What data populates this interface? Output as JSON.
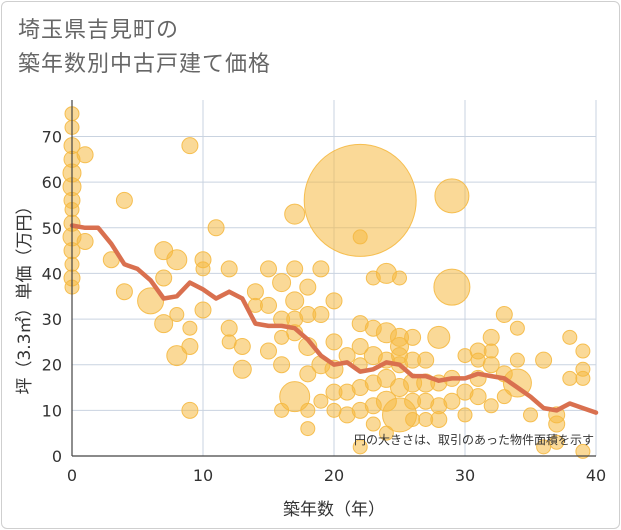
{
  "chart_data": {
    "type": "scatter",
    "title_lines": [
      "埼玉県吉見町の",
      "築年数別中古戸建て価格"
    ],
    "xlabel": "築年数（年）",
    "ylabel": "坪（3.3㎡）単価（万円）",
    "xlim": [
      0,
      40
    ],
    "ylim": [
      0,
      78
    ],
    "xticks": [
      0,
      10,
      20,
      30,
      40
    ],
    "yticks": [
      0,
      10,
      20,
      30,
      40,
      50,
      60,
      70
    ],
    "grid": true,
    "note": "円の大きさは、取引のあった物件面積を示す",
    "colors": {
      "bubble": "#f5b942",
      "line": "#d9704f",
      "grid": "#c9d3e0"
    },
    "series": [
      {
        "type": "bubble",
        "points": [
          {
            "x": 0,
            "y": 75,
            "r": 7
          },
          {
            "x": 0,
            "y": 72,
            "r": 7
          },
          {
            "x": 0,
            "y": 68,
            "r": 8
          },
          {
            "x": 0,
            "y": 65,
            "r": 8
          },
          {
            "x": 0,
            "y": 62,
            "r": 9
          },
          {
            "x": 0,
            "y": 59,
            "r": 9
          },
          {
            "x": 0,
            "y": 56,
            "r": 8
          },
          {
            "x": 0,
            "y": 54,
            "r": 7
          },
          {
            "x": 0,
            "y": 51,
            "r": 8
          },
          {
            "x": 0,
            "y": 48,
            "r": 9
          },
          {
            "x": 0,
            "y": 45,
            "r": 8
          },
          {
            "x": 0,
            "y": 42,
            "r": 7
          },
          {
            "x": 0,
            "y": 39,
            "r": 8
          },
          {
            "x": 0,
            "y": 37,
            "r": 7
          },
          {
            "x": 1,
            "y": 66,
            "r": 8
          },
          {
            "x": 1,
            "y": 47,
            "r": 8
          },
          {
            "x": 3,
            "y": 43,
            "r": 8
          },
          {
            "x": 4,
            "y": 56,
            "r": 8
          },
          {
            "x": 4,
            "y": 36,
            "r": 8
          },
          {
            "x": 6,
            "y": 34,
            "r": 13
          },
          {
            "x": 7,
            "y": 45,
            "r": 9
          },
          {
            "x": 7,
            "y": 39,
            "r": 8
          },
          {
            "x": 7,
            "y": 29,
            "r": 9
          },
          {
            "x": 8,
            "y": 43,
            "r": 10
          },
          {
            "x": 8,
            "y": 31,
            "r": 7
          },
          {
            "x": 8,
            "y": 22,
            "r": 10
          },
          {
            "x": 9,
            "y": 68,
            "r": 8
          },
          {
            "x": 9,
            "y": 28,
            "r": 7
          },
          {
            "x": 9,
            "y": 24,
            "r": 8
          },
          {
            "x": 9,
            "y": 10,
            "r": 8
          },
          {
            "x": 10,
            "y": 43,
            "r": 8
          },
          {
            "x": 10,
            "y": 41,
            "r": 7
          },
          {
            "x": 10,
            "y": 32,
            "r": 8
          },
          {
            "x": 11,
            "y": 50,
            "r": 8
          },
          {
            "x": 12,
            "y": 41,
            "r": 8
          },
          {
            "x": 12,
            "y": 28,
            "r": 8
          },
          {
            "x": 12,
            "y": 25,
            "r": 7
          },
          {
            "x": 13,
            "y": 24,
            "r": 8
          },
          {
            "x": 13,
            "y": 19,
            "r": 9
          },
          {
            "x": 14,
            "y": 36,
            "r": 8
          },
          {
            "x": 14,
            "y": 33,
            "r": 7
          },
          {
            "x": 15,
            "y": 41,
            "r": 8
          },
          {
            "x": 15,
            "y": 33,
            "r": 8
          },
          {
            "x": 15,
            "y": 23,
            "r": 8
          },
          {
            "x": 16,
            "y": 38,
            "r": 9
          },
          {
            "x": 16,
            "y": 30,
            "r": 8
          },
          {
            "x": 16,
            "y": 26,
            "r": 7
          },
          {
            "x": 16,
            "y": 20,
            "r": 8
          },
          {
            "x": 16,
            "y": 10,
            "r": 7
          },
          {
            "x": 17,
            "y": 53,
            "r": 10
          },
          {
            "x": 17,
            "y": 41,
            "r": 8
          },
          {
            "x": 17,
            "y": 34,
            "r": 9
          },
          {
            "x": 17,
            "y": 30,
            "r": 8
          },
          {
            "x": 17,
            "y": 27,
            "r": 8
          },
          {
            "x": 17,
            "y": 13,
            "r": 15
          },
          {
            "x": 18,
            "y": 37,
            "r": 8
          },
          {
            "x": 18,
            "y": 31,
            "r": 8
          },
          {
            "x": 18,
            "y": 24,
            "r": 9
          },
          {
            "x": 18,
            "y": 18,
            "r": 8
          },
          {
            "x": 18,
            "y": 10,
            "r": 7
          },
          {
            "x": 18,
            "y": 6,
            "r": 7
          },
          {
            "x": 19,
            "y": 41,
            "r": 8
          },
          {
            "x": 19,
            "y": 31,
            "r": 8
          },
          {
            "x": 19,
            "y": 20,
            "r": 9
          },
          {
            "x": 19,
            "y": 12,
            "r": 7
          },
          {
            "x": 20,
            "y": 34,
            "r": 8
          },
          {
            "x": 20,
            "y": 25,
            "r": 8
          },
          {
            "x": 20,
            "y": 19,
            "r": 9
          },
          {
            "x": 20,
            "y": 14,
            "r": 8
          },
          {
            "x": 20,
            "y": 10,
            "r": 7
          },
          {
            "x": 21,
            "y": 22,
            "r": 8
          },
          {
            "x": 21,
            "y": 14,
            "r": 8
          },
          {
            "x": 21,
            "y": 9,
            "r": 8
          },
          {
            "x": 22,
            "y": 56,
            "r": 56
          },
          {
            "x": 22,
            "y": 48,
            "r": 7
          },
          {
            "x": 22,
            "y": 29,
            "r": 8
          },
          {
            "x": 22,
            "y": 24,
            "r": 8
          },
          {
            "x": 22,
            "y": 20,
            "r": 7
          },
          {
            "x": 22,
            "y": 15,
            "r": 8
          },
          {
            "x": 22,
            "y": 10,
            "r": 8
          },
          {
            "x": 22,
            "y": 2,
            "r": 7
          },
          {
            "x": 23,
            "y": 39,
            "r": 7
          },
          {
            "x": 23,
            "y": 28,
            "r": 8
          },
          {
            "x": 23,
            "y": 22,
            "r": 9
          },
          {
            "x": 23,
            "y": 16,
            "r": 8
          },
          {
            "x": 23,
            "y": 11,
            "r": 8
          },
          {
            "x": 23,
            "y": 7,
            "r": 7
          },
          {
            "x": 24,
            "y": 40,
            "r": 10
          },
          {
            "x": 24,
            "y": 27,
            "r": 10
          },
          {
            "x": 24,
            "y": 21,
            "r": 8
          },
          {
            "x": 24,
            "y": 17,
            "r": 9
          },
          {
            "x": 24,
            "y": 12,
            "r": 10
          },
          {
            "x": 24,
            "y": 5,
            "r": 7
          },
          {
            "x": 25,
            "y": 39,
            "r": 7
          },
          {
            "x": 25,
            "y": 26,
            "r": 9
          },
          {
            "x": 25,
            "y": 24,
            "r": 9
          },
          {
            "x": 25,
            "y": 22,
            "r": 8
          },
          {
            "x": 25,
            "y": 20,
            "r": 8
          },
          {
            "x": 25,
            "y": 15,
            "r": 9
          },
          {
            "x": 25,
            "y": 9,
            "r": 17
          },
          {
            "x": 26,
            "y": 26,
            "r": 8
          },
          {
            "x": 26,
            "y": 21,
            "r": 8
          },
          {
            "x": 26,
            "y": 16,
            "r": 9
          },
          {
            "x": 26,
            "y": 12,
            "r": 8
          },
          {
            "x": 26,
            "y": 8,
            "r": 7
          },
          {
            "x": 27,
            "y": 21,
            "r": 8
          },
          {
            "x": 27,
            "y": 16,
            "r": 9
          },
          {
            "x": 27,
            "y": 12,
            "r": 8
          },
          {
            "x": 27,
            "y": 8,
            "r": 7
          },
          {
            "x": 28,
            "y": 26,
            "r": 11
          },
          {
            "x": 28,
            "y": 16,
            "r": 8
          },
          {
            "x": 28,
            "y": 11,
            "r": 8
          },
          {
            "x": 28,
            "y": 8,
            "r": 8
          },
          {
            "x": 29,
            "y": 57,
            "r": 17
          },
          {
            "x": 29,
            "y": 37,
            "r": 18
          },
          {
            "x": 29,
            "y": 17,
            "r": 8
          },
          {
            "x": 29,
            "y": 12,
            "r": 8
          },
          {
            "x": 30,
            "y": 22,
            "r": 7
          },
          {
            "x": 30,
            "y": 14,
            "r": 8
          },
          {
            "x": 30,
            "y": 9,
            "r": 7
          },
          {
            "x": 31,
            "y": 23,
            "r": 8
          },
          {
            "x": 31,
            "y": 21,
            "r": 7
          },
          {
            "x": 31,
            "y": 17,
            "r": 8
          },
          {
            "x": 31,
            "y": 13,
            "r": 8
          },
          {
            "x": 32,
            "y": 26,
            "r": 8
          },
          {
            "x": 32,
            "y": 23,
            "r": 7
          },
          {
            "x": 32,
            "y": 20,
            "r": 8
          },
          {
            "x": 32,
            "y": 11,
            "r": 7
          },
          {
            "x": 33,
            "y": 31,
            "r": 8
          },
          {
            "x": 33,
            "y": 18,
            "r": 8
          },
          {
            "x": 33,
            "y": 13,
            "r": 7
          },
          {
            "x": 34,
            "y": 28,
            "r": 7
          },
          {
            "x": 34,
            "y": 21,
            "r": 7
          },
          {
            "x": 34,
            "y": 16,
            "r": 14
          },
          {
            "x": 35,
            "y": 9,
            "r": 7
          },
          {
            "x": 36,
            "y": 21,
            "r": 8
          },
          {
            "x": 36,
            "y": 2,
            "r": 7
          },
          {
            "x": 37,
            "y": 9,
            "r": 8
          },
          {
            "x": 37,
            "y": 7,
            "r": 8
          },
          {
            "x": 37,
            "y": 3,
            "r": 7
          },
          {
            "x": 38,
            "y": 26,
            "r": 7
          },
          {
            "x": 38,
            "y": 17,
            "r": 7
          },
          {
            "x": 39,
            "y": 23,
            "r": 7
          },
          {
            "x": 39,
            "y": 19,
            "r": 7
          },
          {
            "x": 39,
            "y": 17,
            "r": 7
          },
          {
            "x": 39,
            "y": 1,
            "r": 7
          }
        ]
      },
      {
        "type": "line",
        "x": [
          0,
          1,
          2,
          3,
          4,
          5,
          6,
          7,
          8,
          9,
          10,
          11,
          12,
          13,
          14,
          15,
          16,
          17,
          18,
          19,
          20,
          21,
          22,
          23,
          24,
          25,
          26,
          27,
          28,
          29,
          30,
          31,
          32,
          33,
          34,
          35,
          36,
          37,
          38,
          39,
          40
        ],
        "y": [
          50.5,
          50,
          50,
          46.5,
          42,
          41,
          38.5,
          34.5,
          35,
          38,
          36.5,
          34.5,
          36,
          34.5,
          29,
          28.5,
          28.5,
          28,
          25.5,
          22,
          20,
          20.5,
          18.5,
          19,
          20.5,
          20,
          17.5,
          17.5,
          16.5,
          17,
          17,
          18,
          17.5,
          17,
          15,
          13,
          10.5,
          10,
          11.5,
          10.5,
          9.5
        ]
      }
    ]
  }
}
